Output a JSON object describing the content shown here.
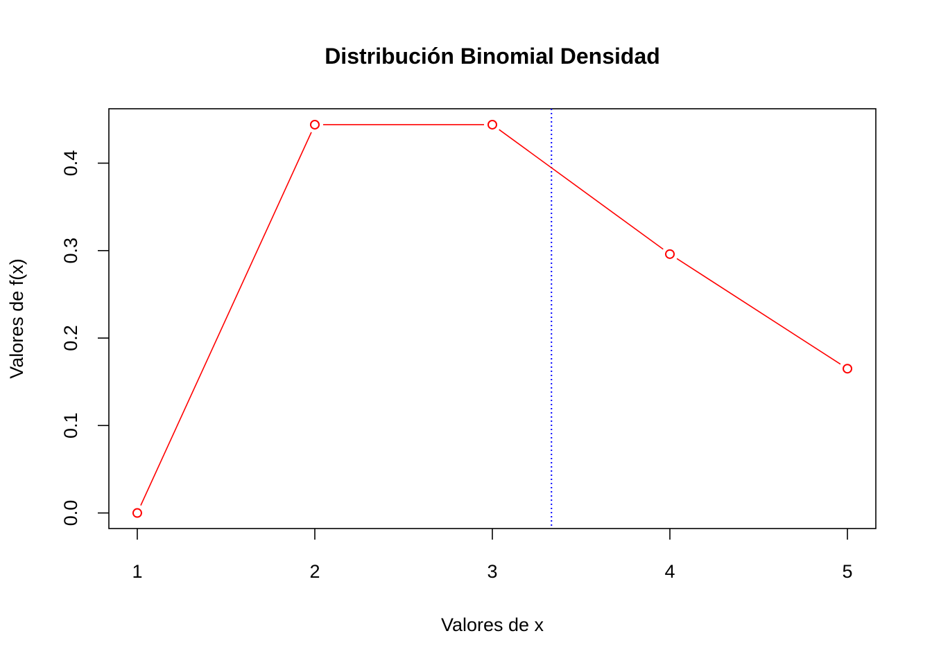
{
  "chart_data": {
    "type": "line",
    "title": "Distribución Binomial Densidad",
    "xlabel": "Valores de x",
    "ylabel": "Valores de f(x)",
    "x": [
      1,
      2,
      3,
      4,
      5
    ],
    "series": [
      {
        "values": [
          0.0,
          0.444,
          0.444,
          0.296,
          0.165
        ]
      }
    ],
    "x_ticks": [
      "1",
      "2",
      "3",
      "4",
      "5"
    ],
    "y_ticks": [
      "0.0",
      "0.1",
      "0.2",
      "0.3",
      "0.4"
    ],
    "xlim": [
      0.84,
      5.16
    ],
    "ylim": [
      -0.0178,
      0.4622
    ],
    "vline": {
      "x": 3.333,
      "style": "dotted"
    },
    "grid": false,
    "legend": "none",
    "line_color": "#ff0000",
    "vline_color": "#0000ff",
    "marker": "open-circle"
  }
}
